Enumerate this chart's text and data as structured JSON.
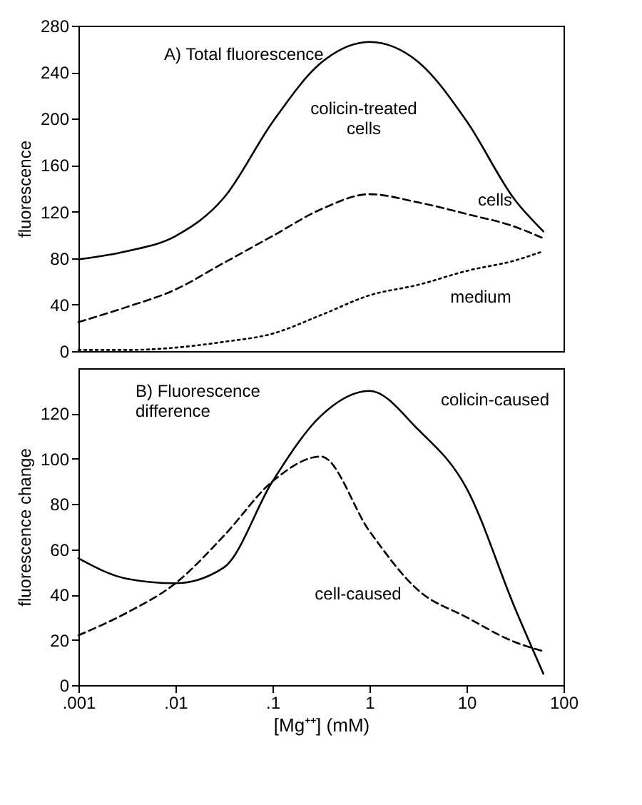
{
  "chart_data": [
    {
      "type": "line",
      "annotations": [
        "A) Total fluorescence"
      ],
      "ylabel": "fluorescence",
      "x": [
        0.001,
        0.00316,
        0.01,
        0.0316,
        0.1,
        0.316,
        1,
        3.16,
        10,
        31.6,
        62
      ],
      "xlim": [
        0.001,
        100
      ],
      "log": "x",
      "ylim": [
        0,
        280
      ],
      "yticks": [
        0,
        40,
        80,
        120,
        160,
        200,
        240,
        280
      ],
      "tick_labels": "y",
      "grid": false,
      "legend": false,
      "series": [
        {
          "name": "colicin-treated cells",
          "color": "#000000",
          "line_style": "solid",
          "values": [
            79,
            86,
            99,
            132,
            197,
            248,
            266,
            249,
            198,
            130,
            103
          ]
        },
        {
          "name": "cells",
          "color": "#000000",
          "line_style": "dashed",
          "values": [
            25,
            38,
            53,
            76,
            99,
            122,
            135,
            128,
            118,
            107,
            97
          ]
        },
        {
          "name": "medium",
          "color": "#000000",
          "line_style": "dotted",
          "values": [
            1,
            1,
            3,
            8,
            15,
            31,
            48,
            57,
            69,
            78,
            86
          ]
        }
      ]
    },
    {
      "type": "line",
      "annotations": [
        "B) Fluorescence difference"
      ],
      "ylabel": "fluorescence change",
      "xlabel": "[Mg⁺⁺] (mM)",
      "x": [
        0.001,
        0.00316,
        0.01,
        0.0316,
        0.1,
        0.316,
        1,
        3.16,
        10,
        31.6,
        62
      ],
      "xlim": [
        0.001,
        100
      ],
      "log": "x",
      "xticks": [
        {
          "value": 0.001,
          "label": ".001"
        },
        {
          "value": 0.01,
          "label": ".01"
        },
        {
          "value": 0.1,
          "label": ".1"
        },
        1,
        10,
        100
      ],
      "ylim": [
        0,
        140
      ],
      "yticks": [
        0,
        20,
        40,
        60,
        80,
        100,
        120
      ],
      "grid": false,
      "legend": false,
      "series": [
        {
          "name": "colicin-caused",
          "color": "#000000",
          "line_style": "solid",
          "values": [
            56,
            47,
            45,
            52,
            90,
            119,
            130,
            113,
            87,
            34,
            5
          ]
        },
        {
          "name": "cell-caused",
          "color": "#000000",
          "line_style": "dashed",
          "values": [
            22,
            32,
            45,
            66,
            90,
            101,
            68,
            42,
            30,
            19,
            15
          ]
        }
      ]
    }
  ]
}
